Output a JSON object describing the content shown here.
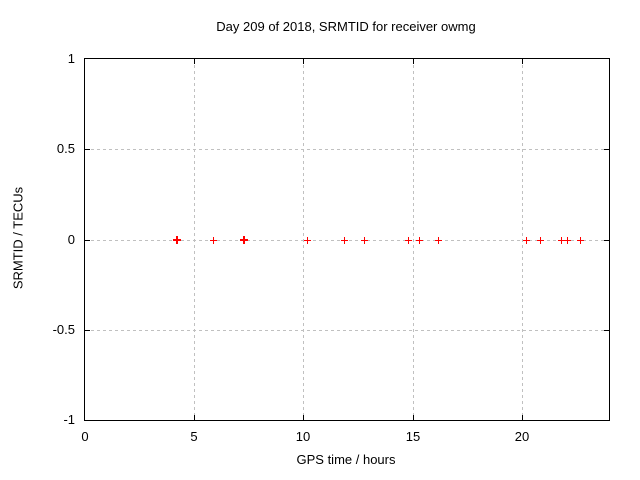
{
  "chart_data": {
    "type": "scatter",
    "title": "Day 209 of 2018, SRMTID for receiver owmg",
    "xlabel": "GPS time / hours",
    "ylabel": "SRMTID / TECUs",
    "xlim": [
      0,
      24
    ],
    "ylim": [
      -1,
      1
    ],
    "xticks": [
      0,
      5,
      10,
      15,
      20
    ],
    "yticks": [
      1,
      0.5,
      0,
      -0.5,
      -1
    ],
    "grid": true,
    "legend": false,
    "marker": "plus",
    "marker_color": "#ff0000",
    "grid_color": "#c0c0c0",
    "border_color": "#000000",
    "background_color": "#ffffff",
    "series": [
      {
        "name": "SRMTID",
        "points": [
          {
            "x": 4.2,
            "y": 0,
            "bold": true
          },
          {
            "x": 5.85,
            "y": 0,
            "bold": false
          },
          {
            "x": 7.28,
            "y": 0,
            "bold": true
          },
          {
            "x": 10.17,
            "y": 0,
            "bold": false
          },
          {
            "x": 11.85,
            "y": 0,
            "bold": false
          },
          {
            "x": 12.77,
            "y": 0,
            "bold": false
          },
          {
            "x": 14.81,
            "y": 0,
            "bold": false
          },
          {
            "x": 15.31,
            "y": 0,
            "bold": false
          },
          {
            "x": 16.16,
            "y": 0,
            "bold": false
          },
          {
            "x": 20.2,
            "y": 0,
            "bold": false
          },
          {
            "x": 20.84,
            "y": 0,
            "bold": false
          },
          {
            "x": 21.8,
            "y": 0,
            "bold": false
          },
          {
            "x": 22.08,
            "y": 0,
            "bold": false
          },
          {
            "x": 22.67,
            "y": 0,
            "bold": false
          }
        ]
      }
    ]
  }
}
